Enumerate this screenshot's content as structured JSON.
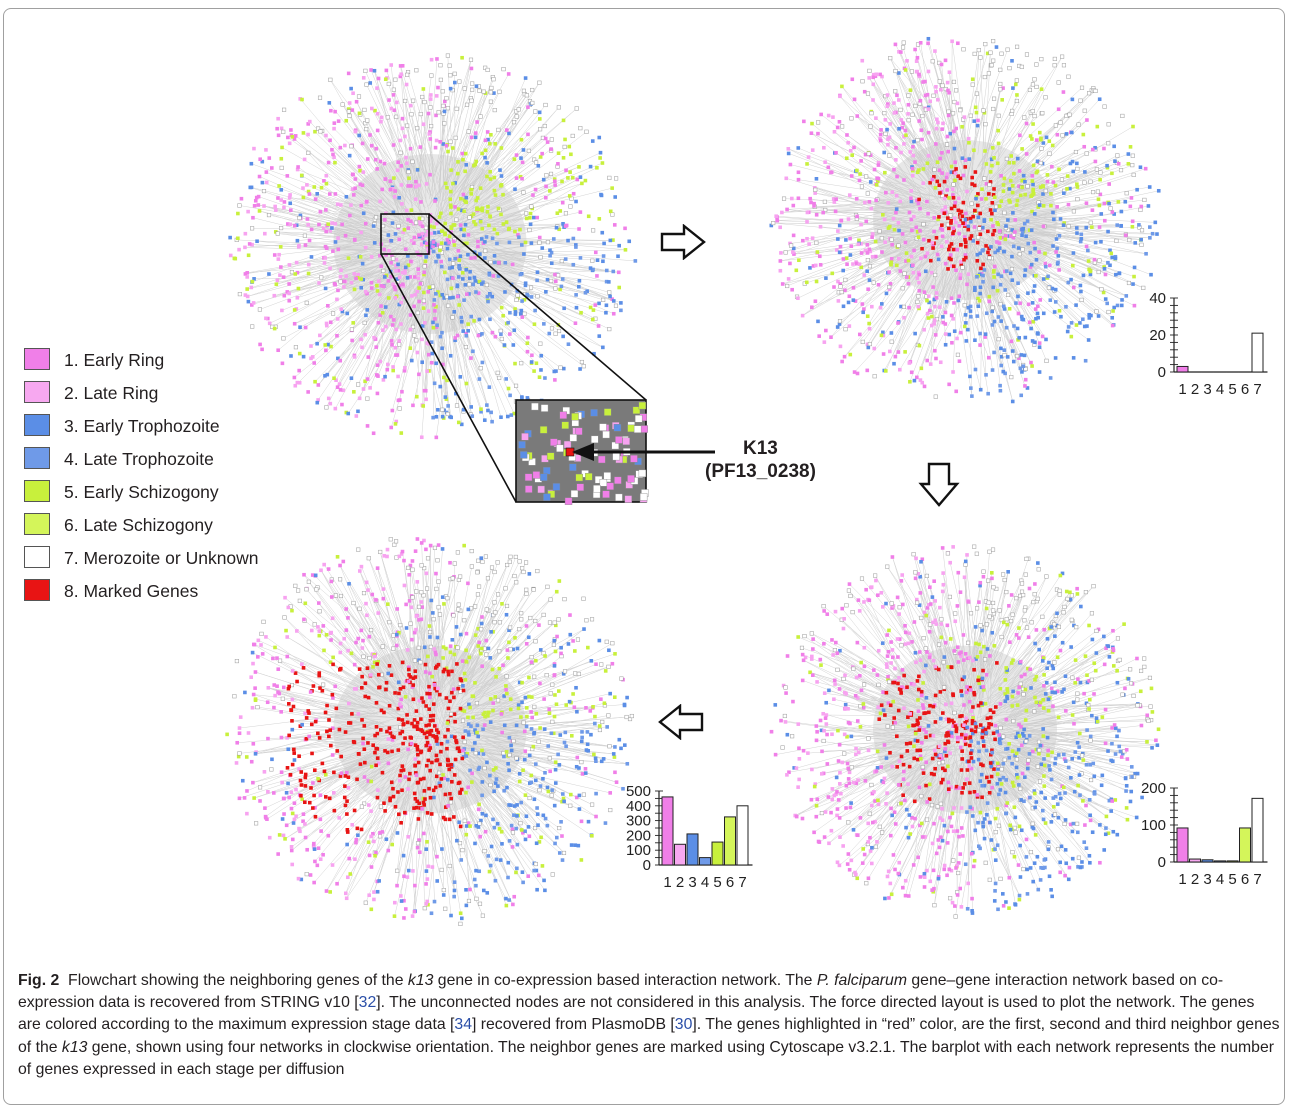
{
  "colors": {
    "early_ring": "#f07fe8",
    "late_ring": "#f7a3f0",
    "early_trophozoite": "#5b8ee6",
    "late_trophozoite": "#6f9ae8",
    "early_schizogony": "#c8f03c",
    "late_schizogony": "#d4f55a",
    "merozoite": "#ffffff",
    "marked": "#e81414"
  },
  "legend": [
    {
      "label": "1. Early Ring",
      "color": "#f07fe8"
    },
    {
      "label": "2. Late Ring",
      "color": "#f7a8f0"
    },
    {
      "label": "3. Early Trophozoite",
      "color": "#5b8ee6"
    },
    {
      "label": "4. Late Trophozoite",
      "color": "#6f9ae8"
    },
    {
      "label": "5. Early Schizogony",
      "color": "#c8f03c"
    },
    {
      "label": "6. Late Schizogony",
      "color": "#d4f55a"
    },
    {
      "label": "7. Merozoite or Unknown",
      "color": "#ffffff"
    },
    {
      "label": "8. Marked Genes",
      "color": "#e81414"
    }
  ],
  "callout": {
    "line1": "K13",
    "line2": "(PF13_0238)"
  },
  "chart_data": [
    {
      "type": "bar",
      "categories": [
        "1",
        "2",
        "3",
        "4",
        "5",
        "6",
        "7"
      ],
      "values": [
        3,
        0,
        0,
        0,
        0,
        0,
        21
      ],
      "ylim": [
        0,
        40
      ],
      "yticks": [
        "0",
        "20",
        "40"
      ],
      "bar_colors": [
        "#f07fe8",
        "#f7a8f0",
        "#5b8ee6",
        "#6f9ae8",
        "#c8f03c",
        "#d4f55a",
        "#ffffff"
      ]
    },
    {
      "type": "bar",
      "categories": [
        "1",
        "2",
        "3",
        "4",
        "5",
        "6",
        "7"
      ],
      "values": [
        92,
        8,
        6,
        3,
        3,
        92,
        172
      ],
      "ylim": [
        0,
        200
      ],
      "yticks": [
        "0",
        "100",
        "200"
      ],
      "bar_colors": [
        "#f07fe8",
        "#f7a8f0",
        "#5b8ee6",
        "#6f9ae8",
        "#c8f03c",
        "#d4f55a",
        "#ffffff"
      ]
    },
    {
      "type": "bar",
      "categories": [
        "1",
        "2",
        "3",
        "4",
        "5",
        "6",
        "7"
      ],
      "values": [
        460,
        140,
        210,
        50,
        155,
        325,
        400
      ],
      "ylim": [
        0,
        500
      ],
      "yticks": [
        "0",
        "100",
        "200",
        "300",
        "400",
        "500"
      ],
      "bar_colors": [
        "#f07fe8",
        "#f7a8f0",
        "#5b8ee6",
        "#6f9ae8",
        "#c8f03c",
        "#d4f55a",
        "#ffffff"
      ]
    }
  ],
  "caption": {
    "fig_label": "Fig. 2",
    "s1": "Flowchart showing the neighboring genes of the ",
    "k13": "k13",
    "s2": " gene in co-expression based interaction network. The ",
    "species": "P. falciparum",
    "s3": " gene–gene interaction network based on co-expression data is recovered from STRING v10 [",
    "ref1": "32",
    "s4": "]. The unconnected nodes are not considered in this analysis. The force directed layout is used to plot the network. The genes are colored according to the maximum expression stage data [",
    "ref2": "34",
    "s5": "] recovered from PlasmoDB [",
    "ref3": "30",
    "s6": "]. The genes highlighted in “red” color, are the first, second and third neighbor genes of the ",
    "k13b": "k13",
    "s7": " gene, shown using four networks in clockwise orientation. The neighbor genes are marked using Cytoscape v3.2.1. The barplot with each network represents the number of genes expressed in each stage per diffusion"
  }
}
